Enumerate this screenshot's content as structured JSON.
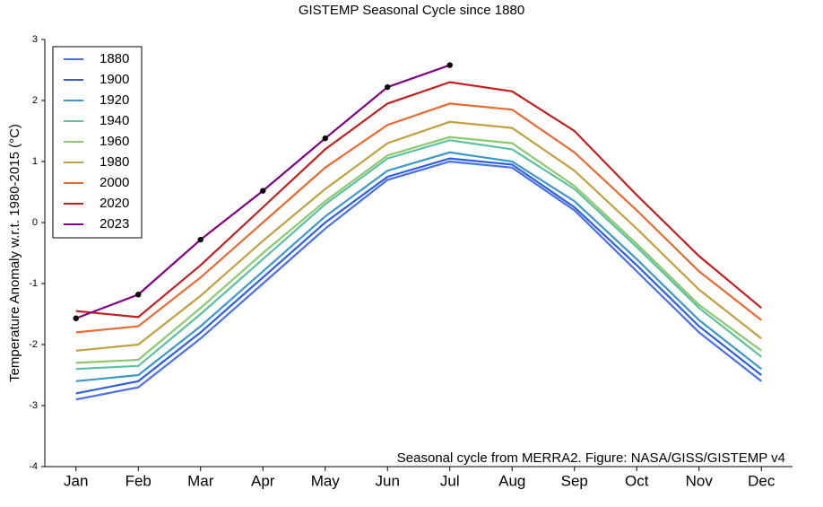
{
  "chart_data": {
    "type": "line",
    "title": "GISTEMP Seasonal Cycle since 1880",
    "y_label": "Temperature Anomaly w.r.t. 1980-2015 (°C)",
    "annotation": "Seasonal cycle from MERRA2. Figure: NASA/GISS/GISTEMP v4",
    "categories": [
      "Jan",
      "Feb",
      "Mar",
      "Apr",
      "May",
      "Jun",
      "Jul",
      "Aug",
      "Sep",
      "Oct",
      "Nov",
      "Dec"
    ],
    "ylim": [
      -4,
      3
    ],
    "yticks": [
      -4,
      -3,
      -2,
      -1,
      0,
      1,
      2,
      3
    ],
    "legend": "upper left",
    "series": [
      {
        "name": "1880",
        "color": "#4a6fe3",
        "values": [
          -2.9,
          -2.7,
          -1.9,
          -1.0,
          -0.1,
          0.7,
          1.0,
          0.9,
          0.2,
          -0.8,
          -1.8,
          -2.6
        ]
      },
      {
        "name": "1900",
        "color": "#2f5fe0",
        "values": [
          -2.8,
          -2.6,
          -1.8,
          -0.9,
          0.0,
          0.75,
          1.05,
          0.95,
          0.25,
          -0.7,
          -1.7,
          -2.5
        ]
      },
      {
        "name": "1920",
        "color": "#3a98c8",
        "values": [
          -2.6,
          -2.5,
          -1.7,
          -0.8,
          0.1,
          0.85,
          1.15,
          1.0,
          0.35,
          -0.6,
          -1.6,
          -2.4
        ]
      },
      {
        "name": "1940",
        "color": "#5cc0a0",
        "values": [
          -2.4,
          -2.35,
          -1.5,
          -0.6,
          0.3,
          1.05,
          1.35,
          1.2,
          0.55,
          -0.4,
          -1.4,
          -2.2
        ]
      },
      {
        "name": "1960",
        "color": "#8cc870",
        "values": [
          -2.3,
          -2.25,
          -1.4,
          -0.5,
          0.35,
          1.1,
          1.4,
          1.3,
          0.6,
          -0.35,
          -1.35,
          -2.1
        ]
      },
      {
        "name": "1980",
        "color": "#c0a040",
        "values": [
          -2.1,
          -2.0,
          -1.2,
          -0.3,
          0.55,
          1.3,
          1.65,
          1.55,
          0.85,
          -0.1,
          -1.1,
          -1.9
        ]
      },
      {
        "name": "2000",
        "color": "#e86a30",
        "values": [
          -1.8,
          -1.7,
          -0.9,
          0.0,
          0.9,
          1.6,
          1.95,
          1.85,
          1.15,
          0.2,
          -0.8,
          -1.6
        ]
      },
      {
        "name": "2020",
        "color": "#c02020",
        "values": [
          -1.45,
          -1.55,
          -0.7,
          0.25,
          1.2,
          1.95,
          2.3,
          2.15,
          1.5,
          0.45,
          -0.55,
          -1.4
        ]
      },
      {
        "name": "2023",
        "color": "#800080",
        "markers": true,
        "values": [
          -1.57,
          -1.18,
          -0.28,
          0.52,
          1.38,
          2.22,
          2.58,
          null,
          null,
          null,
          null,
          null
        ]
      }
    ]
  }
}
